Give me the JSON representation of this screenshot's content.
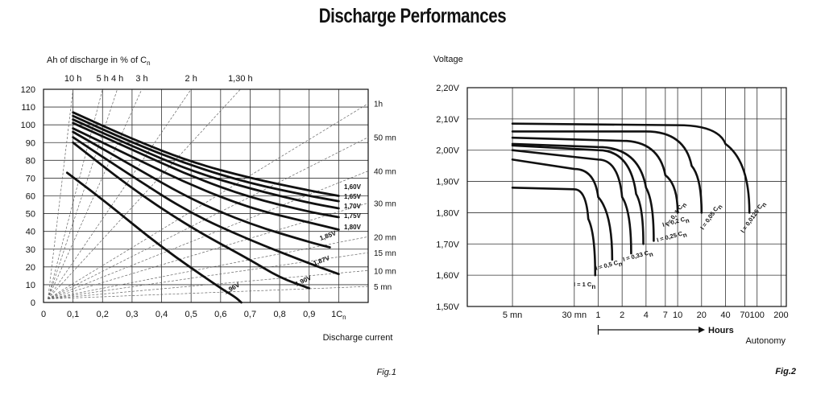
{
  "title": "Discharge Performances",
  "chart_data": [
    {
      "type": "line",
      "figure_label": "Fig.1",
      "ylabel": "Ah of discharge in % of C",
      "ylabel_sub": "n",
      "xlabel": "Discharge current",
      "xlim": [
        0,
        1.1
      ],
      "ylim": [
        0,
        120
      ],
      "x_ticks": [
        "0",
        "0,1",
        "0,2",
        "0,3",
        "0,4",
        "0,5",
        "0,6",
        "0,7",
        "0,8",
        "0,9",
        "1C"
      ],
      "x_last_tick_sub": "n",
      "y_ticks": [
        "0",
        "10",
        "20",
        "30",
        "40",
        "50",
        "60",
        "70",
        "80",
        "90",
        "100",
        "110",
        "120"
      ],
      "grid": true,
      "top_time_labels": [
        {
          "label": "10 h",
          "x": 0.1
        },
        {
          "label": "5 h",
          "x": 0.2
        },
        {
          "label": "4 h",
          "x": 0.25
        },
        {
          "label": "3 h",
          "x": 0.333
        },
        {
          "label": "2 h",
          "x": 0.5
        },
        {
          "label": "1,30 h",
          "x": 0.667
        }
      ],
      "right_time_labels": [
        {
          "label": "1h",
          "y": 112
        },
        {
          "label": "50 mn",
          "y": 93
        },
        {
          "label": "40 mn",
          "y": 74
        },
        {
          "label": "30 mn",
          "y": 56
        },
        {
          "label": "20 mn",
          "y": 37
        },
        {
          "label": "15 mn",
          "y": 28
        },
        {
          "label": "10 mn",
          "y": 18
        },
        {
          "label": "5 mn",
          "y": 9
        }
      ],
      "series": [
        {
          "name": "1,60V",
          "x": [
            0.1,
            0.3,
            0.5,
            0.7,
            0.9,
            1.0
          ],
          "y": [
            107,
            92,
            79,
            70,
            63,
            60
          ]
        },
        {
          "name": "1,65V",
          "x": [
            0.1,
            0.3,
            0.5,
            0.7,
            0.9,
            1.0
          ],
          "y": [
            105,
            90,
            77,
            67,
            60,
            57
          ]
        },
        {
          "name": "1,70V",
          "x": [
            0.1,
            0.3,
            0.5,
            0.7,
            0.9,
            1.0
          ],
          "y": [
            103,
            88,
            74,
            64,
            56,
            53
          ]
        },
        {
          "name": "1,75V",
          "x": [
            0.1,
            0.3,
            0.5,
            0.7,
            0.9,
            1.0
          ],
          "y": [
            101,
            86,
            71,
            59,
            51,
            48
          ]
        },
        {
          "name": "1,80V",
          "x": [
            0.1,
            0.3,
            0.5,
            0.7,
            0.9,
            1.0
          ],
          "y": [
            98,
            82,
            66,
            53,
            45,
            41
          ]
        },
        {
          "name": "1,85V",
          "x": [
            0.1,
            0.3,
            0.5,
            0.7,
            0.9,
            0.97
          ],
          "y": [
            96,
            77,
            58,
            44,
            34,
            31
          ]
        },
        {
          "name": "1,87V",
          "x": [
            0.1,
            0.3,
            0.5,
            0.7,
            0.9,
            1.0
          ],
          "y": [
            93,
            71,
            50,
            35,
            22,
            16
          ]
        },
        {
          "name": "1,90V",
          "x": [
            0.1,
            0.3,
            0.5,
            0.7,
            0.8,
            0.9
          ],
          "y": [
            90,
            64,
            42,
            24,
            14,
            8
          ]
        },
        {
          "name": "1,96V",
          "x": [
            0.08,
            0.2,
            0.4,
            0.6,
            0.65,
            0.67
          ],
          "y": [
            73,
            58,
            31,
            8,
            3,
            0
          ]
        }
      ]
    },
    {
      "type": "line",
      "figure_label": "Fig.2",
      "ylabel": "Voltage",
      "xlabel": "Autonomy",
      "hours_label": "Hours",
      "ylim": [
        1.5,
        2.2
      ],
      "x_ticks": [
        "5 mn",
        "30 mn",
        "1",
        "2",
        "4",
        "7",
        "10",
        "20",
        "40",
        "70",
        "100",
        "200"
      ],
      "y_ticks": [
        "1,50V",
        "1,60V",
        "1,70V",
        "1,80V",
        "1,90V",
        "2,00V",
        "2,10V",
        "2,20V"
      ],
      "grid": true,
      "series": [
        {
          "name": "I = 1 C",
          "name_sub": "n",
          "points": [
            [
              "5 mn",
              1.88
            ],
            [
              "30 mn",
              1.875
            ],
            [
              "~45 mn",
              1.78
            ],
            [
              "~55 mn",
              1.6
            ]
          ]
        },
        {
          "name": "I = 0,5 C",
          "name_sub": "n",
          "points": [
            [
              "5 mn",
              1.97
            ],
            [
              "30 mn",
              1.94
            ],
            [
              "1",
              1.85
            ],
            [
              "1,5",
              1.65
            ]
          ]
        },
        {
          "name": "I = 0,33 C",
          "name_sub": "n",
          "points": [
            [
              "5 mn",
              2.0
            ],
            [
              "1",
              1.97
            ],
            [
              "2",
              1.85
            ],
            [
              "2,6",
              1.67
            ]
          ]
        },
        {
          "name": "I = 0,25 C",
          "name_sub": "n",
          "points": [
            [
              "5 mn",
              2.015
            ],
            [
              "1",
              2.0
            ],
            [
              "3",
              1.86
            ],
            [
              "3,7",
              1.7
            ]
          ]
        },
        {
          "name": "I = 0,2 C",
          "name_sub": "n",
          "points": [
            [
              "5 mn",
              2.02
            ],
            [
              "1",
              2.01
            ],
            [
              "4",
              1.88
            ],
            [
              "5",
              1.71
            ]
          ]
        },
        {
          "name": "I = 0, 1 C",
          "name_sub": "n",
          "points": [
            [
              "5 mn",
              2.04
            ],
            [
              "2",
              2.03
            ],
            [
              "7",
              1.92
            ],
            [
              "10",
              1.8
            ]
          ]
        },
        {
          "name": "I = 0,05 C",
          "name_sub": "n",
          "points": [
            [
              "5 mn",
              2.06
            ],
            [
              "4",
              2.06
            ],
            [
              "15",
              1.95
            ],
            [
              "20",
              1.8
            ]
          ]
        },
        {
          "name": "I = 0,0125 C",
          "name_sub": "n",
          "points": [
            [
              "5 mn",
              2.085
            ],
            [
              "10",
              2.08
            ],
            [
              "40",
              2.02
            ],
            [
              "80",
              1.8
            ]
          ]
        }
      ]
    }
  ]
}
